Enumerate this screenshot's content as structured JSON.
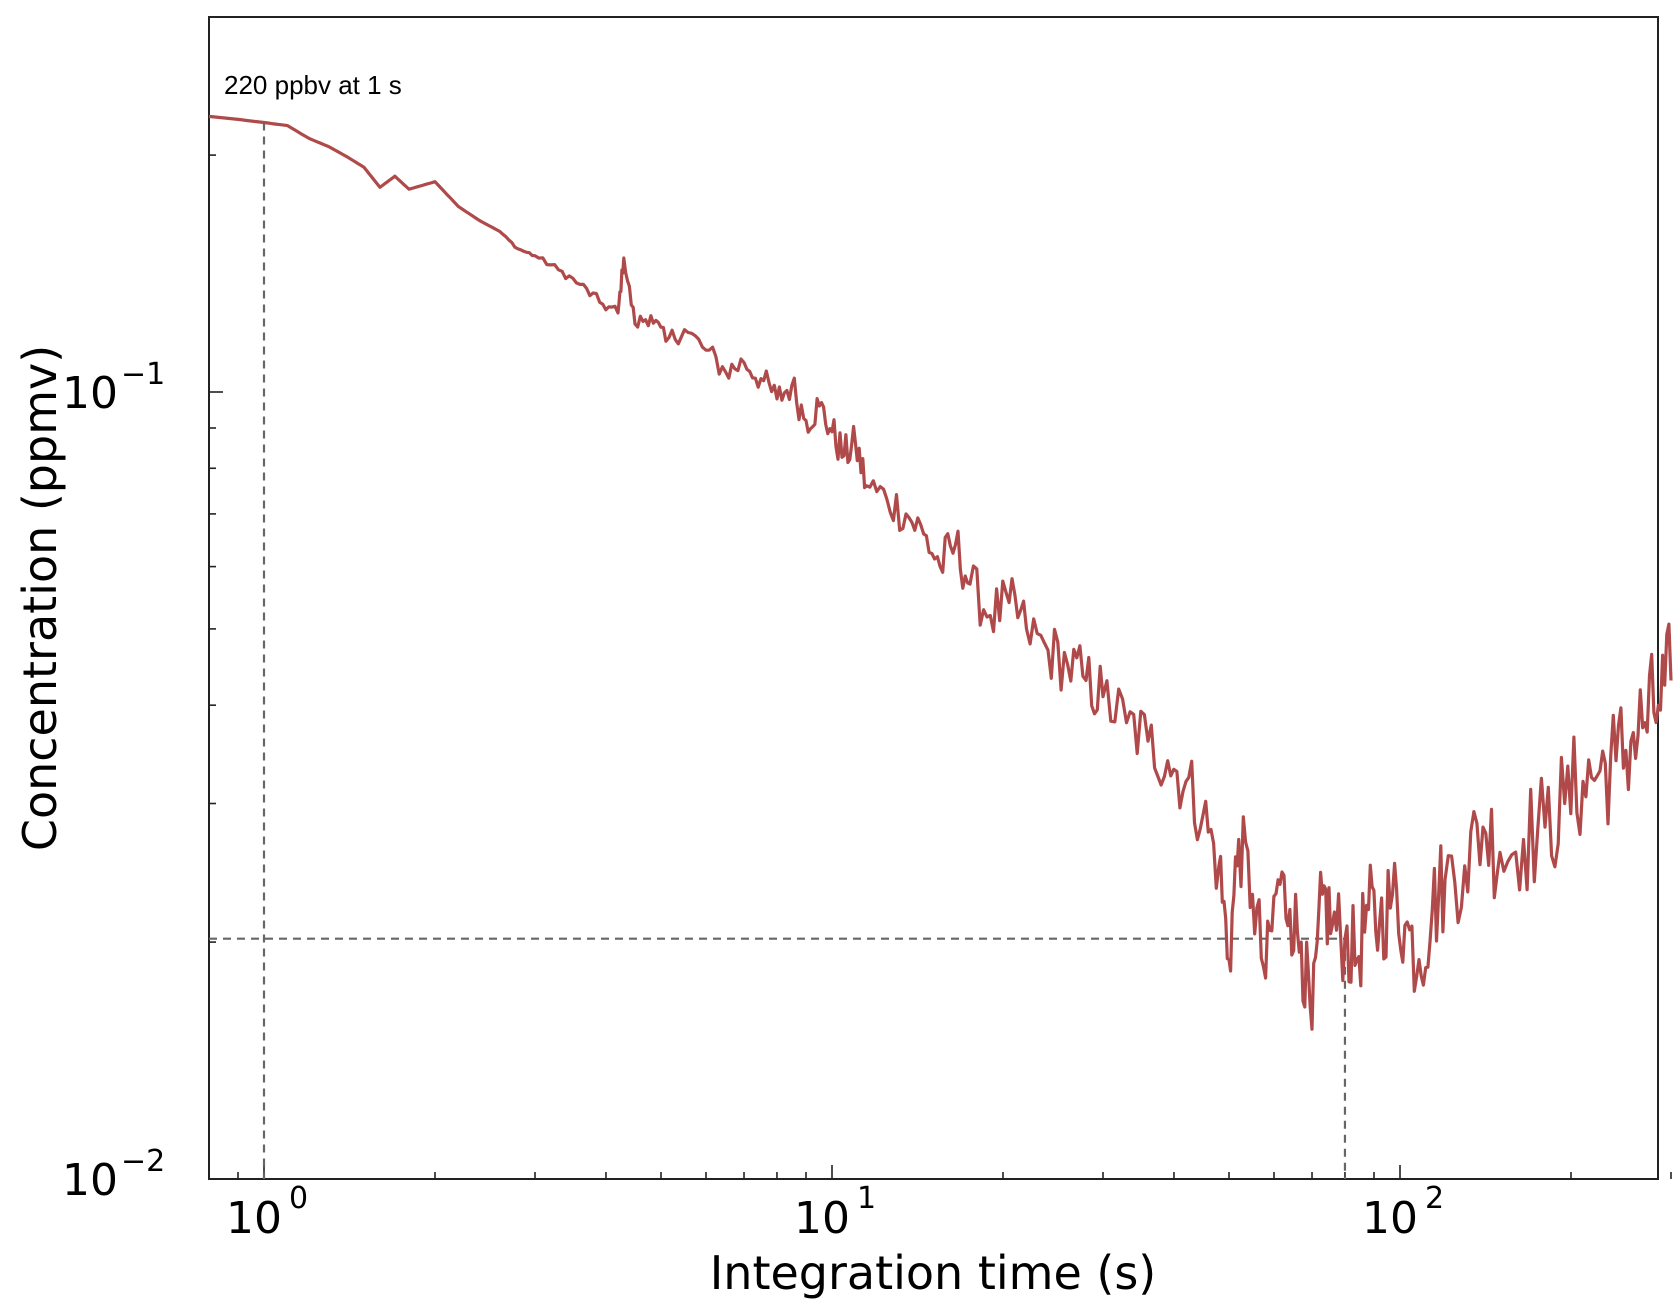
{
  "chart_data": {
    "type": "line",
    "xlabel": "Integration time (s)",
    "ylabel": "Concentration (ppmv)",
    "xscale": "log",
    "yscale": "log",
    "xlim": [
      0.8,
      300
    ],
    "ylim": [
      0.01,
      0.3
    ],
    "x_ticks": [
      {
        "base": "10",
        "exp": "0",
        "value": 1
      },
      {
        "base": "10",
        "exp": "1",
        "value": 10
      },
      {
        "base": "10",
        "exp": "2",
        "value": 100
      }
    ],
    "y_ticks": [
      {
        "base": "10",
        "exp": "−1",
        "value": 0.1
      },
      {
        "base": "10",
        "exp": "−2",
        "value": 0.01
      }
    ],
    "grid": false,
    "line_color": "#b04a4a",
    "reference_color": "#666666",
    "annotation": {
      "text": "220 ppbv at 1 s",
      "x": 1,
      "y": 0.22
    },
    "reference_point": {
      "x": 80,
      "y": 0.0202
    },
    "series": [
      {
        "values": [
          [
            0.8,
            0.224
          ],
          [
            0.9,
            0.222
          ],
          [
            1.0,
            0.22
          ],
          [
            1.1,
            0.218
          ],
          [
            1.2,
            0.21
          ],
          [
            1.3,
            0.205
          ],
          [
            1.4,
            0.199
          ],
          [
            1.5,
            0.193
          ],
          [
            1.6,
            0.182
          ],
          [
            1.7,
            0.188
          ],
          [
            1.8,
            0.181
          ],
          [
            2.0,
            0.185
          ],
          [
            2.2,
            0.172
          ],
          [
            2.4,
            0.165
          ],
          [
            2.6,
            0.16
          ],
          [
            2.8,
            0.152
          ],
          [
            3.0,
            0.149
          ],
          [
            3.3,
            0.143
          ],
          [
            3.6,
            0.137
          ],
          [
            3.9,
            0.13
          ],
          [
            4.2,
            0.126
          ],
          [
            4.3,
            0.148
          ],
          [
            4.5,
            0.122
          ],
          [
            4.8,
            0.125
          ],
          [
            5.1,
            0.116
          ],
          [
            5.5,
            0.12
          ],
          [
            6.0,
            0.113
          ],
          [
            6.5,
            0.106
          ],
          [
            7.0,
            0.109
          ],
          [
            7.5,
            0.104
          ],
          [
            8.0,
            0.098
          ],
          [
            8.5,
            0.102
          ],
          [
            9.0,
            0.092
          ],
          [
            9.5,
            0.096
          ],
          [
            10.0,
            0.089
          ],
          [
            10.5,
            0.083
          ],
          [
            11.0,
            0.086
          ],
          [
            11.5,
            0.076
          ],
          [
            12.5,
            0.073
          ],
          [
            13.5,
            0.07
          ],
          [
            14.5,
            0.066
          ],
          [
            15.5,
            0.06
          ],
          [
            16.5,
            0.064
          ],
          [
            17.5,
            0.057
          ],
          [
            19.0,
            0.052
          ],
          [
            20.5,
            0.054
          ],
          [
            22.0,
            0.05
          ],
          [
            24.0,
            0.047
          ],
          [
            26.0,
            0.045
          ],
          [
            28.0,
            0.043
          ],
          [
            30.0,
            0.041
          ],
          [
            33.0,
            0.038
          ],
          [
            36.0,
            0.036
          ],
          [
            39.0,
            0.034
          ],
          [
            42.0,
            0.032
          ],
          [
            45.0,
            0.029
          ],
          [
            48.0,
            0.025
          ],
          [
            50.0,
            0.019
          ],
          [
            52.0,
            0.027
          ],
          [
            55.0,
            0.023
          ],
          [
            58.0,
            0.018
          ],
          [
            61.0,
            0.024
          ],
          [
            64.0,
            0.022
          ],
          [
            67.0,
            0.02
          ],
          [
            70.0,
            0.0155
          ],
          [
            73.0,
            0.023
          ],
          [
            76.0,
            0.021
          ],
          [
            80.0,
            0.0202
          ],
          [
            84.0,
            0.019
          ],
          [
            88.0,
            0.022
          ],
          [
            92.0,
            0.021
          ],
          [
            97.0,
            0.023
          ],
          [
            102.0,
            0.021
          ],
          [
            108.0,
            0.019
          ],
          [
            114.0,
            0.022
          ],
          [
            120.0,
            0.024
          ],
          [
            130.0,
            0.025
          ],
          [
            140.0,
            0.028
          ],
          [
            150.0,
            0.026
          ],
          [
            165.0,
            0.027
          ],
          [
            180.0,
            0.028
          ],
          [
            195.0,
            0.03
          ],
          [
            210.0,
            0.032
          ],
          [
            225.0,
            0.033
          ],
          [
            240.0,
            0.034
          ],
          [
            255.0,
            0.036
          ],
          [
            270.0,
            0.038
          ],
          [
            285.0,
            0.04
          ],
          [
            300.0,
            0.043
          ]
        ]
      }
    ]
  }
}
